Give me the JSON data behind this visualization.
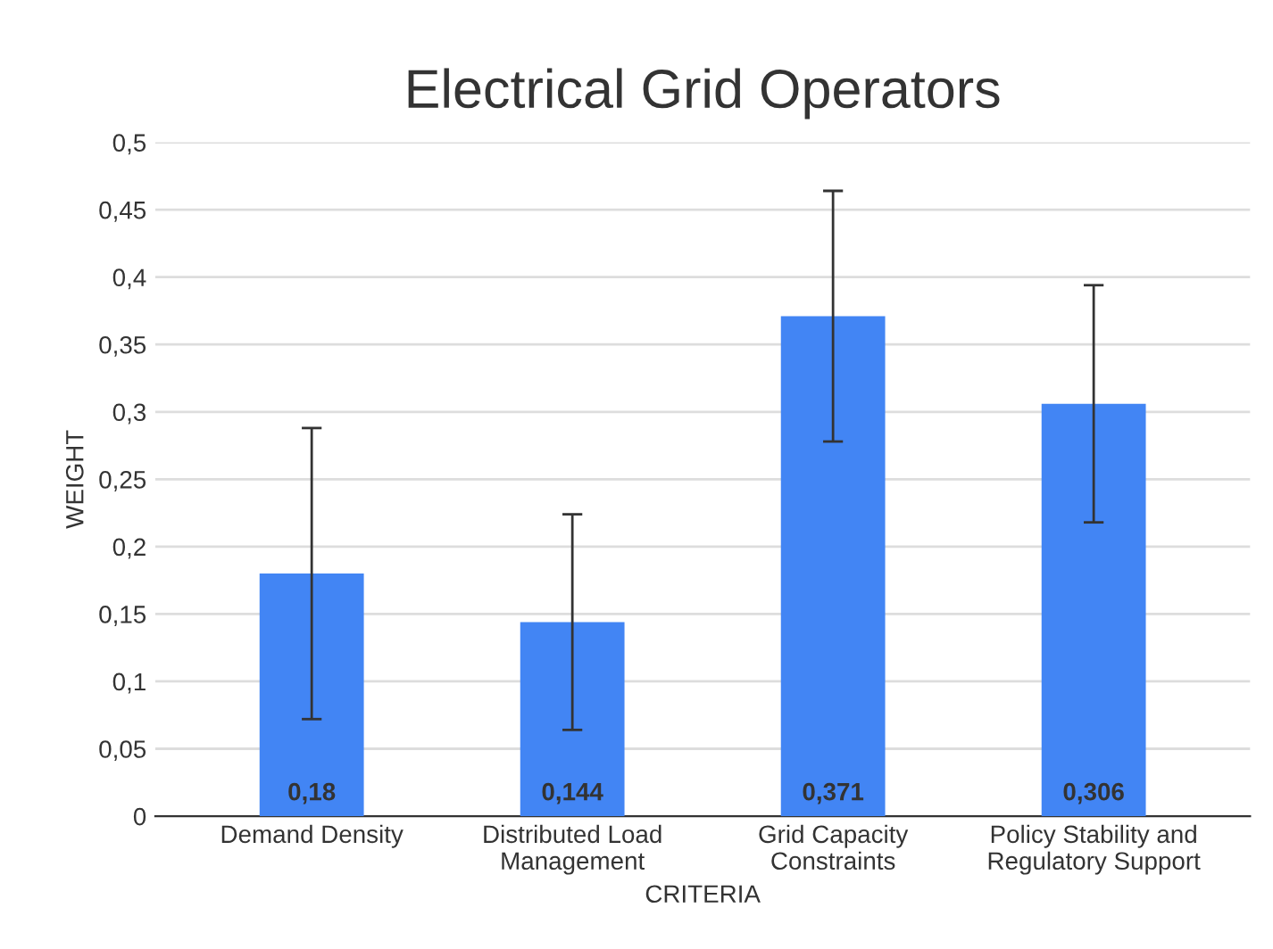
{
  "chart_data": {
    "type": "bar",
    "title": "Electrical Grid Operators",
    "xlabel": "CRITERIA",
    "ylabel": "WEIGHT",
    "categories": [
      "Demand Density",
      "Distributed Load\nManagement",
      "Grid Capacity\nConstraints",
      "Policy Stability and\nRegulatory Support"
    ],
    "values": [
      0.18,
      0.144,
      0.371,
      0.306
    ],
    "value_labels": [
      "0,18",
      "0,144",
      "0,371",
      "0,306"
    ],
    "errors": [
      0.108,
      0.08,
      0.093,
      0.088
    ],
    "color": "#4285f4",
    "ylim": [
      0,
      0.5
    ],
    "yticks": [
      0,
      {
        "value": 0.05,
        "label": "0,05"
      },
      {
        "value": 0.1,
        "label": "0,1"
      },
      {
        "value": 0.15,
        "label": "0,15"
      },
      {
        "value": 0.2,
        "label": "0,2"
      },
      {
        "value": 0.25,
        "label": "0,25"
      },
      {
        "value": 0.3,
        "label": "0,3"
      },
      {
        "value": 0.35,
        "label": "0,35"
      },
      {
        "value": 0.4,
        "label": "0,4"
      },
      {
        "value": 0.45,
        "label": "0,45"
      },
      {
        "value": 0.5,
        "label": "0,5"
      }
    ],
    "grid": "y"
  }
}
